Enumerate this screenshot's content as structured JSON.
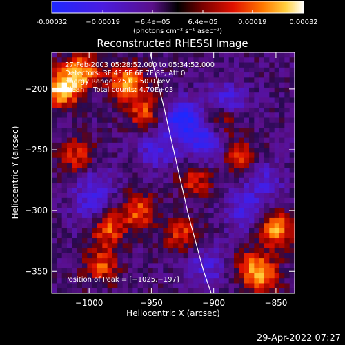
{
  "chart_data": {
    "type": "heatmap",
    "title": "Reconstructed RHESSI Image",
    "xlabel": "Heliocentric X (arcsec)",
    "ylabel": "Heliocentric Y (arcsec)",
    "xlim": [
      -1030,
      -835
    ],
    "ylim": [
      -368,
      -170
    ],
    "xticks": [
      -1000,
      -950,
      -900,
      -850
    ],
    "xtick_labels": [
      "−1000",
      "−950",
      "−900",
      "−850"
    ],
    "yticks": [
      -200,
      -250,
      -300,
      -350
    ],
    "ytick_labels": [
      "−200",
      "−250",
      "−300",
      "−350"
    ],
    "colorbar": {
      "ticks": [
        "-0.00032",
        "−0.00019",
        "−6.4e−05",
        "6.4e−05",
        "0.00019",
        "0.00032"
      ],
      "tick_values": [
        -0.00032,
        -0.00019,
        -6.4e-05,
        6.4e-05,
        0.00019,
        0.00032
      ],
      "unit_label": "(photons cm⁻² s⁻¹ asec⁻²)",
      "range": [
        -0.00032,
        0.00032
      ]
    },
    "annotations": [
      "27-Feb-2003 05:28:52.000 to 05:34:52.000",
      "Detectors: 3F 4F 5F 6F 7F 8F, Att 0",
      "Energy Range: 25.0 - 50.0 keV",
      "Clean    Total counts: 4.70E+03"
    ],
    "peak_label": "Position of Peak = [−1025,−197]",
    "peak": [
      -1025,
      -197
    ],
    "limb_curve": [
      [
        -951,
        -170
      ],
      [
        -940,
        -215
      ],
      [
        -930,
        -260
      ],
      [
        -920,
        -305
      ],
      [
        -908,
        -350
      ],
      [
        -902,
        -368
      ]
    ],
    "emission_regions": [
      {
        "x": -1022,
        "y": -200,
        "intensity": 1.0
      },
      {
        "x": -1005,
        "y": -185,
        "intensity": 0.75
      },
      {
        "x": -970,
        "y": -195,
        "intensity": 0.8
      },
      {
        "x": -955,
        "y": -220,
        "intensity": 0.55
      },
      {
        "x": -1010,
        "y": -255,
        "intensity": 0.5
      },
      {
        "x": -985,
        "y": -315,
        "intensity": 0.65
      },
      {
        "x": -960,
        "y": -300,
        "intensity": 0.6
      },
      {
        "x": -990,
        "y": -345,
        "intensity": 0.55
      },
      {
        "x": -925,
        "y": -320,
        "intensity": 0.5
      },
      {
        "x": -915,
        "y": -275,
        "intensity": 0.45
      },
      {
        "x": -895,
        "y": -225,
        "intensity": 0.5
      },
      {
        "x": -880,
        "y": -255,
        "intensity": 0.55
      },
      {
        "x": -850,
        "y": -315,
        "intensity": 0.75
      },
      {
        "x": -860,
        "y": -355,
        "intensity": 0.6
      },
      {
        "x": -870,
        "y": -345,
        "intensity": 0.5
      }
    ],
    "absorption_regions": [
      {
        "x": -925,
        "y": -225,
        "intensity": 0.9
      },
      {
        "x": -905,
        "y": -245,
        "intensity": 0.75
      },
      {
        "x": -890,
        "y": -210,
        "intensity": 0.6
      },
      {
        "x": -945,
        "y": -250,
        "intensity": 0.55
      },
      {
        "x": -875,
        "y": -300,
        "intensity": 0.55
      },
      {
        "x": -905,
        "y": -345,
        "intensity": 0.5
      },
      {
        "x": -860,
        "y": -275,
        "intensity": 0.45
      },
      {
        "x": -995,
        "y": -280,
        "intensity": 0.45
      },
      {
        "x": -1000,
        "y": -300,
        "intensity": 0.4
      }
    ]
  },
  "footer": {
    "date": "29-Apr-2022 07:27"
  }
}
